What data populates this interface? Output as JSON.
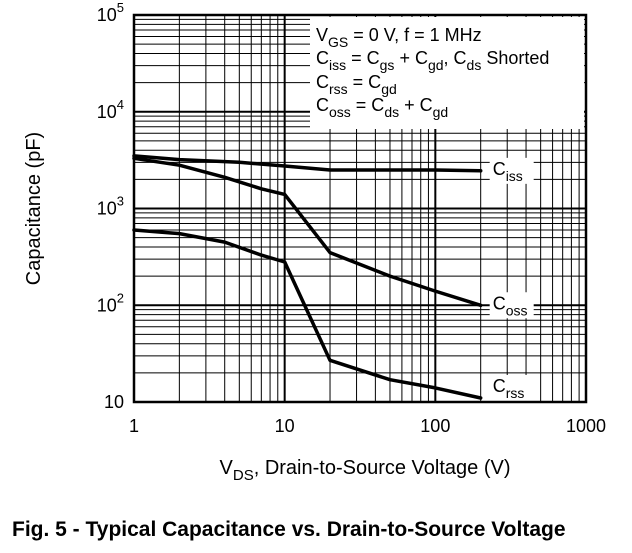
{
  "chart_data": {
    "type": "line",
    "title": "Fig. 5 - Typical Capacitance vs. Drain-to-Source Voltage",
    "xlabel": {
      "main": "V",
      "sub": "DS",
      "rest": ", Drain-to-Source Voltage (V)"
    },
    "ylabel": "Capacitance (pF)",
    "xscale": "log",
    "yscale": "log",
    "xlim": [
      1,
      1000
    ],
    "ylim": [
      10,
      100000
    ],
    "grid": true,
    "x_ticks": [
      "1",
      "10",
      "100",
      "1000"
    ],
    "y_ticks": [
      {
        "base": "10",
        "exp": "5"
      },
      {
        "base": "10",
        "exp": "4"
      },
      {
        "base": "10",
        "exp": "3"
      },
      {
        "base": "10",
        "exp": "2"
      },
      {
        "base": "10",
        "exp": ""
      }
    ],
    "legend": {
      "placement": "top-right",
      "lines": [
        [
          {
            "t": "V"
          },
          {
            "t": "GS",
            "sub": true
          },
          {
            "t": " = 0 V, f = 1 MHz"
          }
        ],
        [
          {
            "t": "C"
          },
          {
            "t": "iss",
            "sub": true
          },
          {
            "t": " = C"
          },
          {
            "t": "gs",
            "sub": true
          },
          {
            "t": " + C"
          },
          {
            "t": "gd",
            "sub": true
          },
          {
            "t": ", C"
          },
          {
            "t": "ds",
            "sub": true
          },
          {
            "t": " Shorted"
          }
        ],
        [
          {
            "t": "C"
          },
          {
            "t": "rss",
            "sub": true
          },
          {
            "t": " = C"
          },
          {
            "t": "gd",
            "sub": true
          }
        ],
        [
          {
            "t": "C"
          },
          {
            "t": "oss",
            "sub": true
          },
          {
            "t": " = C"
          },
          {
            "t": "ds",
            "sub": true
          },
          {
            "t": " + C"
          },
          {
            "t": "gd",
            "sub": true
          }
        ]
      ]
    },
    "series": [
      {
        "name": "Ciss",
        "label_main": "C",
        "label_sub": "iss",
        "x": [
          1,
          2,
          5,
          10,
          20,
          50,
          100,
          200
        ],
        "y": [
          3500,
          3200,
          3000,
          2750,
          2500,
          2500,
          2500,
          2450
        ]
      },
      {
        "name": "Coss",
        "label_main": "C",
        "label_sub": "oss",
        "x": [
          1,
          2,
          4,
          7,
          10,
          20,
          50,
          100,
          200
        ],
        "y": [
          3300,
          2800,
          2100,
          1600,
          1400,
          350,
          200,
          140,
          100
        ]
      },
      {
        "name": "Crss",
        "label_main": "C",
        "label_sub": "rss",
        "x": [
          1,
          2,
          4,
          7,
          10,
          20,
          50,
          100,
          200
        ],
        "y": [
          600,
          550,
          450,
          330,
          280,
          27,
          17,
          14,
          11
        ]
      }
    ]
  }
}
